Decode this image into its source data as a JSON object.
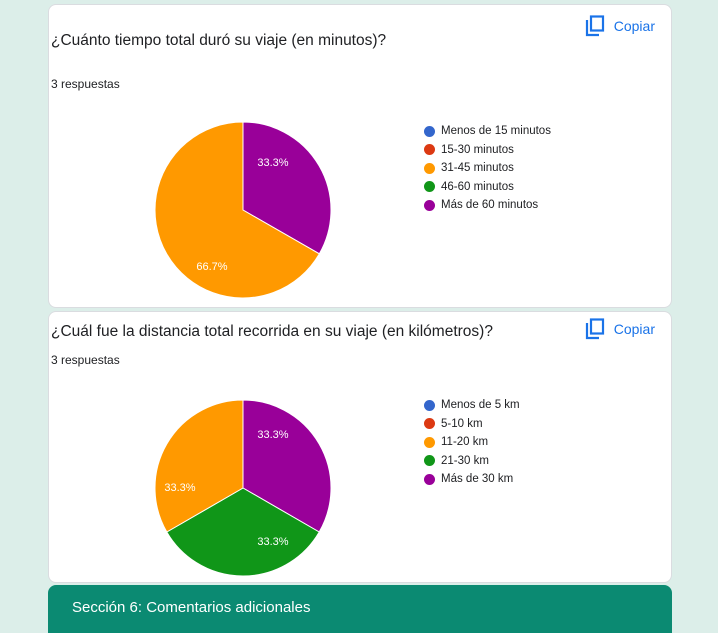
{
  "questions": [
    {
      "title": "¿Cuánto tiempo total duró su viaje (en minutos)?",
      "responses": "3 respuestas",
      "copy_label": "Copiar",
      "legend": [
        {
          "label": "Menos de 15 minutos",
          "color": "#3366cc"
        },
        {
          "label": "15-30 minutos",
          "color": "#dc3912"
        },
        {
          "label": "31-45 minutos",
          "color": "#ff9900"
        },
        {
          "label": "46-60 minutos",
          "color": "#109618"
        },
        {
          "label": "Más de 60 minutos",
          "color": "#990099"
        }
      ],
      "slice_labels": [
        "33.3%",
        "66.7%"
      ]
    },
    {
      "title": "¿Cuál fue la distancia total recorrida en su viaje (en kilómetros)?",
      "responses": "3 respuestas",
      "copy_label": "Copiar",
      "legend": [
        {
          "label": "Menos de 5 km",
          "color": "#3366cc"
        },
        {
          "label": "5-10 km",
          "color": "#dc3912"
        },
        {
          "label": "11-20 km",
          "color": "#ff9900"
        },
        {
          "label": "21-30 km",
          "color": "#109618"
        },
        {
          "label": "Más de 30 km",
          "color": "#990099"
        }
      ],
      "slice_labels": [
        "33.3%",
        "33.3%",
        "33.3%"
      ]
    }
  ],
  "chart_data": [
    {
      "type": "pie",
      "categories": [
        "Menos de 15 minutos",
        "15-30 minutos",
        "31-45 minutos",
        "46-60 minutos",
        "Más de 60 minutos"
      ],
      "values": [
        0,
        0,
        66.7,
        0,
        33.3
      ],
      "colors": [
        "#3366cc",
        "#dc3912",
        "#ff9900",
        "#109618",
        "#990099"
      ],
      "legend": "right"
    },
    {
      "type": "pie",
      "categories": [
        "Menos de 5 km",
        "5-10 km",
        "11-20 km",
        "21-30 km",
        "Más de 30 km"
      ],
      "values": [
        0,
        0,
        33.3,
        33.3,
        33.3
      ],
      "colors": [
        "#3366cc",
        "#dc3912",
        "#ff9900",
        "#109618",
        "#990099"
      ],
      "legend": "right"
    }
  ],
  "section": {
    "title": "Sección 6: Comentarios adicionales"
  },
  "icons": {
    "copy": "copy-icon"
  }
}
